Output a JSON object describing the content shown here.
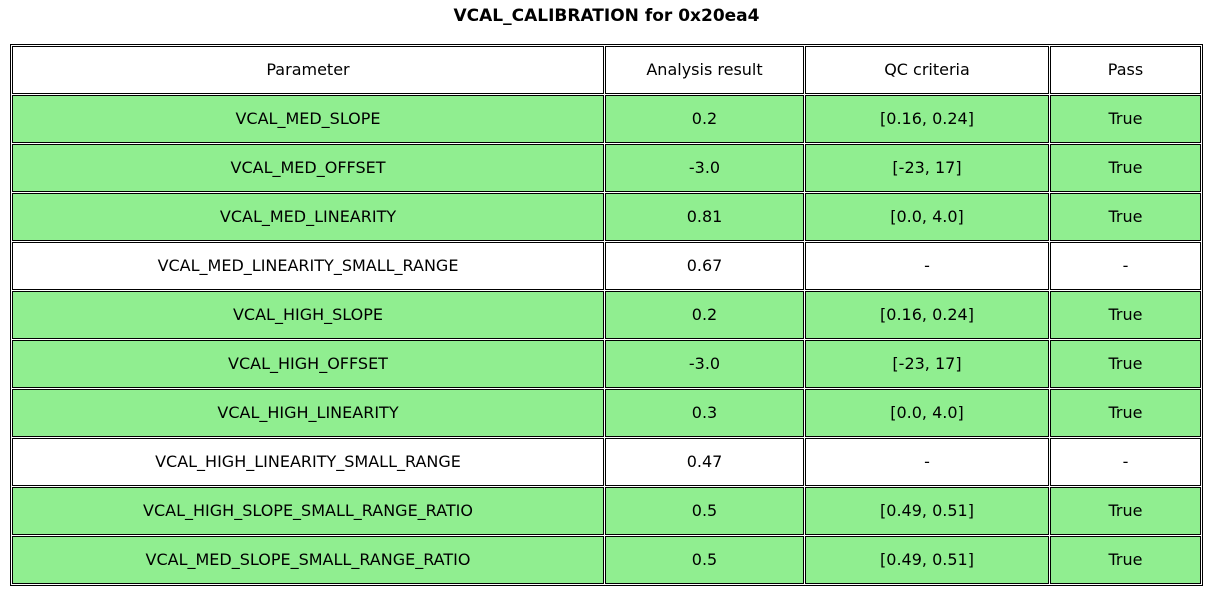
{
  "title": "VCAL_CALIBRATION for 0x20ea4",
  "colors": {
    "row_green": "#90ee90",
    "row_white": "#ffffff",
    "border": "#000000",
    "text": "#000000"
  },
  "table": {
    "columns": [
      "Parameter",
      "Analysis result",
      "QC criteria",
      "Pass"
    ],
    "rows": [
      {
        "parameter": "VCAL_MED_SLOPE",
        "analysis_result": "0.2",
        "qc_criteria": "[0.16, 0.24]",
        "pass": "True",
        "highlight": true
      },
      {
        "parameter": "VCAL_MED_OFFSET",
        "analysis_result": "-3.0",
        "qc_criteria": "[-23, 17]",
        "pass": "True",
        "highlight": true
      },
      {
        "parameter": "VCAL_MED_LINEARITY",
        "analysis_result": "0.81",
        "qc_criteria": "[0.0, 4.0]",
        "pass": "True",
        "highlight": true
      },
      {
        "parameter": "VCAL_MED_LINEARITY_SMALL_RANGE",
        "analysis_result": "0.67",
        "qc_criteria": "-",
        "pass": "-",
        "highlight": false
      },
      {
        "parameter": "VCAL_HIGH_SLOPE",
        "analysis_result": "0.2",
        "qc_criteria": "[0.16, 0.24]",
        "pass": "True",
        "highlight": true
      },
      {
        "parameter": "VCAL_HIGH_OFFSET",
        "analysis_result": "-3.0",
        "qc_criteria": "[-23, 17]",
        "pass": "True",
        "highlight": true
      },
      {
        "parameter": "VCAL_HIGH_LINEARITY",
        "analysis_result": "0.3",
        "qc_criteria": "[0.0, 4.0]",
        "pass": "True",
        "highlight": true
      },
      {
        "parameter": "VCAL_HIGH_LINEARITY_SMALL_RANGE",
        "analysis_result": "0.47",
        "qc_criteria": "-",
        "pass": "-",
        "highlight": false
      },
      {
        "parameter": "VCAL_HIGH_SLOPE_SMALL_RANGE_RATIO",
        "analysis_result": "0.5",
        "qc_criteria": "[0.49, 0.51]",
        "pass": "True",
        "highlight": true
      },
      {
        "parameter": "VCAL_MED_SLOPE_SMALL_RANGE_RATIO",
        "analysis_result": "0.5",
        "qc_criteria": "[0.49, 0.51]",
        "pass": "True",
        "highlight": true
      }
    ]
  },
  "chart_data": {
    "type": "table",
    "title": "VCAL_CALIBRATION for 0x20ea4",
    "columns": [
      "Parameter",
      "Analysis result",
      "QC criteria",
      "Pass"
    ],
    "rows": [
      [
        "VCAL_MED_SLOPE",
        "0.2",
        "[0.16, 0.24]",
        "True"
      ],
      [
        "VCAL_MED_OFFSET",
        "-3.0",
        "[-23, 17]",
        "True"
      ],
      [
        "VCAL_MED_LINEARITY",
        "0.81",
        "[0.0, 4.0]",
        "True"
      ],
      [
        "VCAL_MED_LINEARITY_SMALL_RANGE",
        "0.67",
        "-",
        "-"
      ],
      [
        "VCAL_HIGH_SLOPE",
        "0.2",
        "[0.16, 0.24]",
        "True"
      ],
      [
        "VCAL_HIGH_OFFSET",
        "-3.0",
        "[-23, 17]",
        "True"
      ],
      [
        "VCAL_HIGH_LINEARITY",
        "0.3",
        "[0.0, 4.0]",
        "True"
      ],
      [
        "VCAL_HIGH_LINEARITY_SMALL_RANGE",
        "0.47",
        "-",
        "-"
      ],
      [
        "VCAL_HIGH_SLOPE_SMALL_RANGE_RATIO",
        "0.5",
        "[0.49, 0.51]",
        "True"
      ],
      [
        "VCAL_MED_SLOPE_SMALL_RANGE_RATIO",
        "0.5",
        "[0.49, 0.51]",
        "True"
      ]
    ],
    "row_highlight_green": [
      true,
      true,
      true,
      false,
      true,
      true,
      true,
      false,
      true,
      true
    ],
    "highlight_color": "#90ee90",
    "header_color": "#ffffff"
  }
}
